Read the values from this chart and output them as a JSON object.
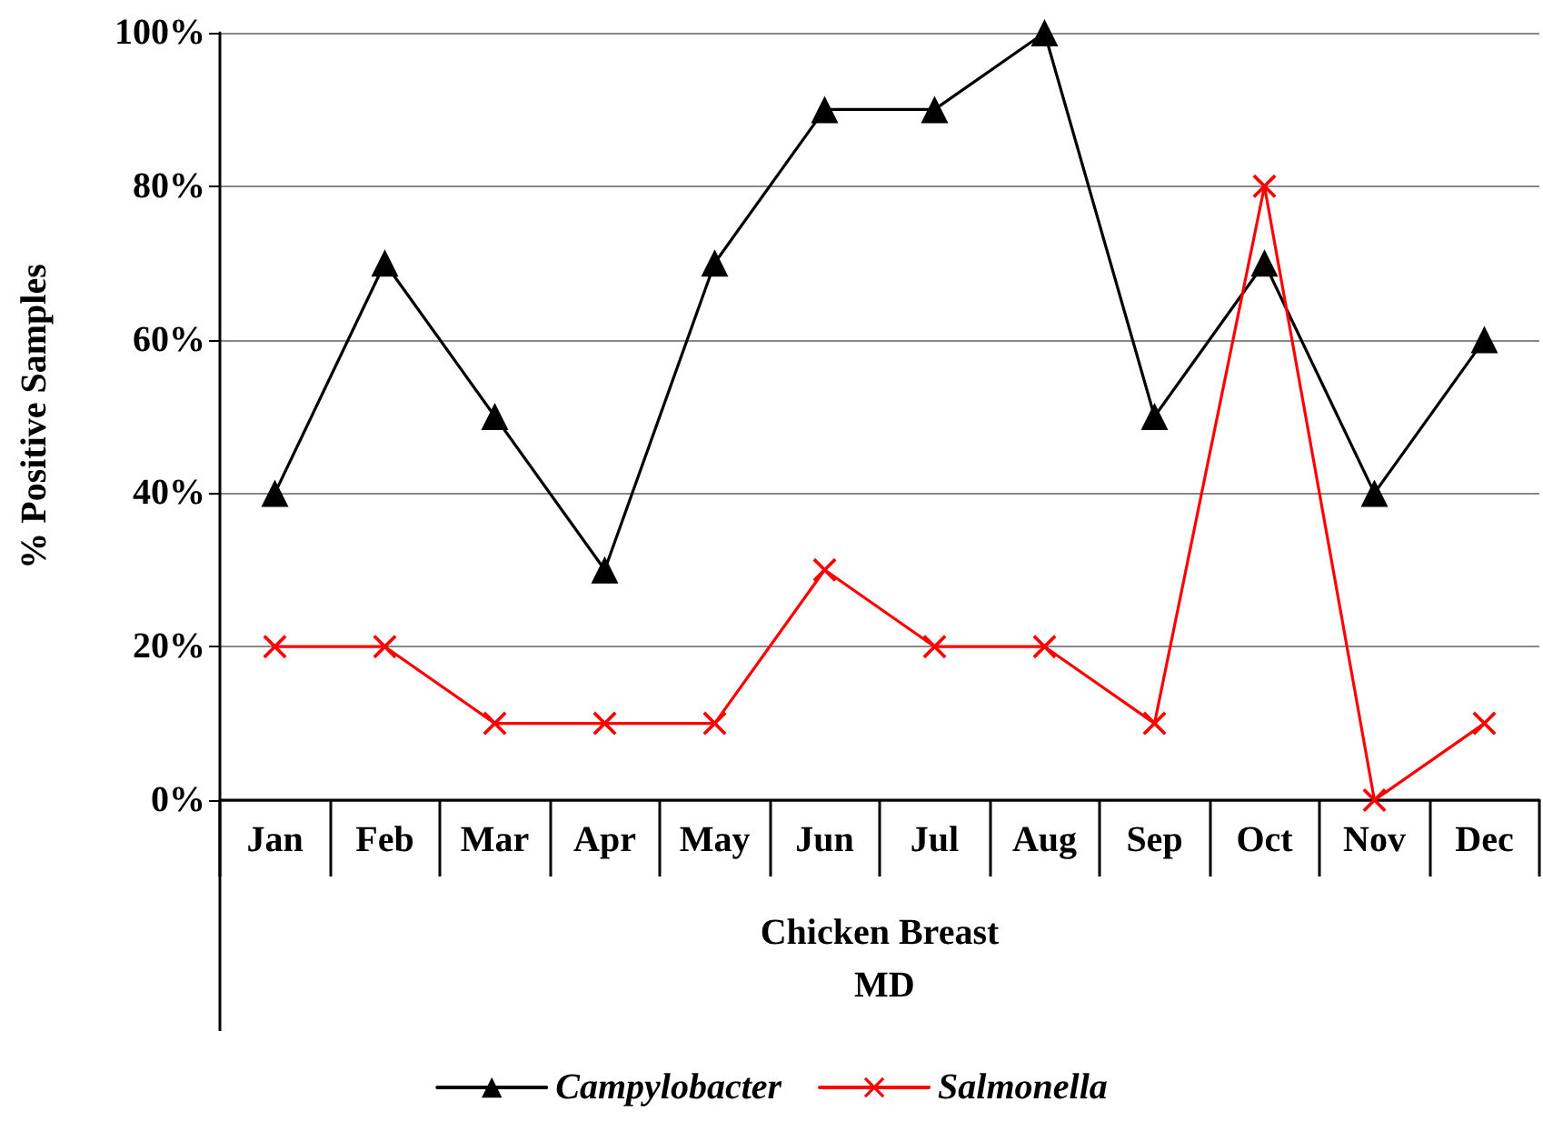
{
  "chart_data": {
    "type": "line",
    "xlabel": "Chicken Breast",
    "ylabel": "% Positive Samples",
    "annotations": [
      "MD"
    ],
    "categories": [
      "Jan",
      "Feb",
      "Mar",
      "Apr",
      "May",
      "Jun",
      "Jul",
      "Aug",
      "Sep",
      "Oct",
      "Nov",
      "Dec"
    ],
    "series": [
      {
        "name": "Campylobacter",
        "color": "#000000",
        "marker": "triangle",
        "values": [
          40,
          70,
          50,
          30,
          70,
          90,
          90,
          100,
          50,
          70,
          40,
          60
        ]
      },
      {
        "name": "Salmonella",
        "color": "#ff0000",
        "marker": "cross",
        "values": [
          20,
          20,
          10,
          10,
          10,
          30,
          20,
          20,
          10,
          80,
          0,
          10
        ]
      }
    ],
    "ylim": [
      0,
      100
    ],
    "yticks": [
      {
        "value": 0,
        "label": "0%"
      },
      {
        "value": 20,
        "label": "20%"
      },
      {
        "value": 40,
        "label": "40%"
      },
      {
        "value": 60,
        "label": "60%"
      },
      {
        "value": 80,
        "label": "80%"
      },
      {
        "value": 100,
        "label": "100%"
      }
    ],
    "grid": "y",
    "legend": "bottom",
    "line_style": "solid"
  }
}
